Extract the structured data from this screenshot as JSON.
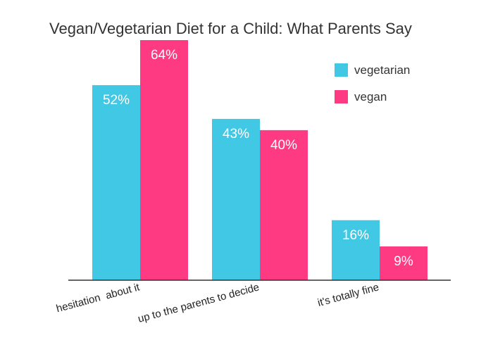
{
  "chart_data": {
    "type": "bar",
    "title": "Vegan/Vegetarian Diet for a Child: What Parents Say",
    "categories": [
      "hesitation  about it",
      "up to the parents to decide",
      "it's totally fine"
    ],
    "series": [
      {
        "name": "vegetarian",
        "values": [
          52,
          43,
          16
        ],
        "labels": [
          "52%",
          "43%",
          "16%"
        ],
        "color": "#40c8e4"
      },
      {
        "name": "vegan",
        "values": [
          64,
          40,
          9
        ],
        "labels": [
          "64%",
          "40%",
          "9%"
        ],
        "color": "#fe3a82"
      }
    ],
    "xlabel": "",
    "ylabel": "",
    "ylim": [
      0,
      64
    ],
    "grid": false,
    "legend_position": "top-right",
    "axis_color": "#333333"
  }
}
